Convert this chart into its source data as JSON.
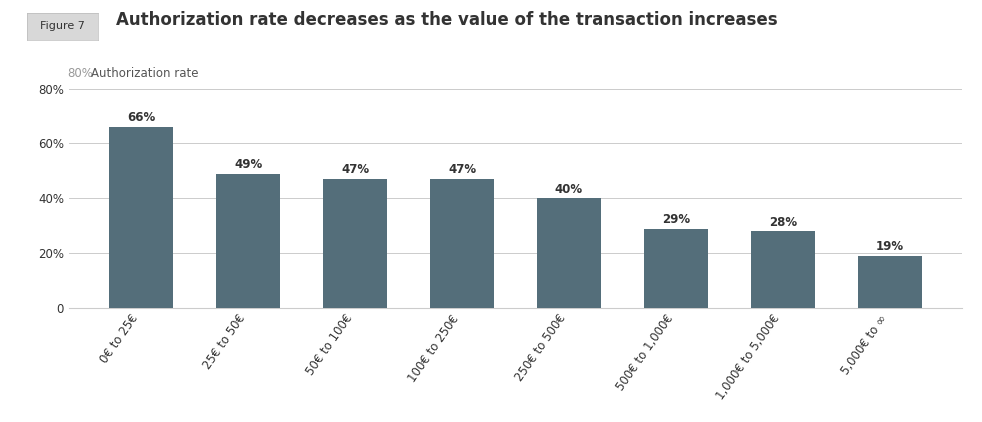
{
  "title": "Authorization rate decreases as the value of the transaction increases",
  "figure_label": "Figure 7",
  "ylabel": "Authorization rate",
  "ylabel_prefix": "80%",
  "categories": [
    "0€ to 25€",
    "25€ to 50€",
    "50€ to 100€",
    "100€ to 250€",
    "250€ to 500€",
    "500€ to 1,000€",
    "1,000€ to 5,000€",
    "5,000€ to ∞"
  ],
  "values": [
    66,
    49,
    47,
    47,
    40,
    29,
    28,
    19
  ],
  "bar_color": "#546e7a",
  "background_color": "#ffffff",
  "ylim": [
    0,
    80
  ],
  "yticks": [
    0,
    20,
    40,
    60,
    80
  ],
  "ytick_labels": [
    "0",
    "20%",
    "40%",
    "60%",
    "80%"
  ],
  "grid_color": "#cccccc",
  "text_color": "#333333",
  "title_fontsize": 12,
  "label_fontsize": 8.5,
  "tick_fontsize": 8.5,
  "value_label_fontsize": 8.5,
  "figure_label_bg": "#d8d8d8",
  "figure_label_fontsize": 8,
  "ylabel_prefix_color": "#999999",
  "ylabel_color": "#555555"
}
